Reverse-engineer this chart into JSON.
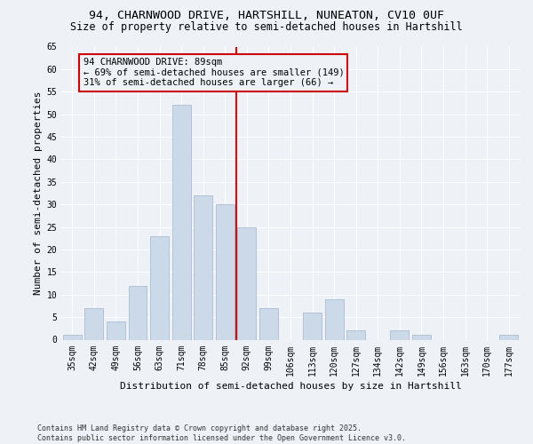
{
  "title1": "94, CHARNWOOD DRIVE, HARTSHILL, NUNEATON, CV10 0UF",
  "title2": "Size of property relative to semi-detached houses in Hartshill",
  "xlabel": "Distribution of semi-detached houses by size in Hartshill",
  "ylabel": "Number of semi-detached properties",
  "bar_labels": [
    "35sqm",
    "42sqm",
    "49sqm",
    "56sqm",
    "63sqm",
    "71sqm",
    "78sqm",
    "85sqm",
    "92sqm",
    "99sqm",
    "106sqm",
    "113sqm",
    "120sqm",
    "127sqm",
    "134sqm",
    "142sqm",
    "149sqm",
    "156sqm",
    "163sqm",
    "170sqm",
    "177sqm"
  ],
  "bar_values": [
    1,
    7,
    4,
    12,
    23,
    52,
    32,
    30,
    25,
    7,
    0,
    6,
    9,
    2,
    0,
    2,
    1,
    0,
    0,
    0,
    1
  ],
  "bar_color": "#ccd9e8",
  "bar_edge_color": "#aabdd4",
  "vline_color": "#cc0000",
  "box_edge_color": "#cc0000",
  "annotation_line1": "94 CHARNWOOD DRIVE: 89sqm",
  "annotation_line2": "← 69% of semi-detached houses are smaller (149)",
  "annotation_line3": "31% of semi-detached houses are larger (66) →",
  "ylim": [
    0,
    65
  ],
  "yticks": [
    0,
    5,
    10,
    15,
    20,
    25,
    30,
    35,
    40,
    45,
    50,
    55,
    60,
    65
  ],
  "footnote": "Contains HM Land Registry data © Crown copyright and database right 2025.\nContains public sector information licensed under the Open Government Licence v3.0.",
  "bg_color": "#eef2f7",
  "grid_color": "#ffffff",
  "title_fontsize": 9.5,
  "subtitle_fontsize": 8.5,
  "axis_label_fontsize": 8,
  "tick_fontsize": 7,
  "annotation_fontsize": 7.5,
  "footnote_fontsize": 6
}
